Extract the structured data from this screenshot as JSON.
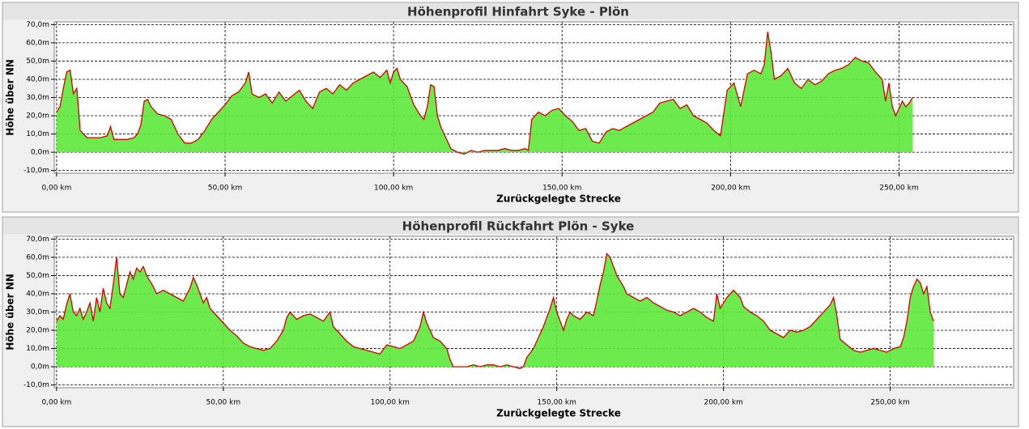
{
  "chart_data": [
    {
      "type": "area",
      "title": "Höhenprofil Hinfahrt Syke - Plön",
      "xlabel": "Zurückgelegte Strecke",
      "ylabel": "Höhe über NN",
      "color": "#5de83a",
      "line_color": "#d40000",
      "grid": true,
      "xlim": [
        -0.7,
        284
      ],
      "ylim": [
        -11.5,
        71.5
      ],
      "xticks": [
        {
          "value": 0,
          "label": "0,00 km"
        },
        {
          "value": 50,
          "label": "50,00 km"
        },
        {
          "value": 100,
          "label": "100,00 km"
        },
        {
          "value": 150,
          "label": "150,00 km"
        },
        {
          "value": 200,
          "label": "200,00 km"
        },
        {
          "value": 250,
          "label": "250,00 km"
        }
      ],
      "yticks": [
        {
          "value": -10,
          "label": "-10,0m"
        },
        {
          "value": 0,
          "label": "0,0m"
        },
        {
          "value": 10,
          "label": "10,0m"
        },
        {
          "value": 20,
          "label": "20,0m"
        },
        {
          "value": 30,
          "label": "30,0m"
        },
        {
          "value": 40,
          "label": "40,0m"
        },
        {
          "value": 50,
          "label": "50,0m"
        },
        {
          "value": 60,
          "label": "60,0m"
        },
        {
          "value": 70,
          "label": "70,0m"
        }
      ],
      "x": [
        0,
        1,
        2,
        3,
        4,
        5,
        6,
        7,
        9,
        11,
        13,
        15,
        16,
        17,
        19,
        21,
        23,
        24,
        25,
        26,
        27,
        28,
        30,
        32,
        34,
        36,
        38,
        40,
        42,
        44,
        46,
        48,
        50,
        52,
        54,
        56,
        57,
        58,
        60,
        62,
        64,
        66,
        68,
        70,
        72,
        74,
        76,
        78,
        80,
        82,
        84,
        86,
        88,
        90,
        92,
        94,
        96,
        98,
        99,
        100,
        101,
        102,
        104,
        106,
        108,
        109,
        110,
        111,
        112,
        113,
        114,
        115,
        117,
        119,
        121,
        123,
        125,
        127,
        129,
        131,
        133,
        135,
        137,
        139,
        140,
        141,
        143,
        145,
        147,
        149,
        151,
        153,
        155,
        157,
        159,
        161,
        163,
        165,
        167,
        169,
        171,
        173,
        175,
        177,
        179,
        181,
        183,
        185,
        187,
        189,
        191,
        193,
        195,
        197,
        199,
        201,
        203,
        205,
        207,
        209,
        210,
        211,
        212,
        213,
        215,
        217,
        219,
        221,
        223,
        225,
        227,
        229,
        231,
        233,
        235,
        237,
        239,
        241,
        243,
        245,
        246,
        247,
        248,
        249,
        251,
        252,
        253,
        254
      ],
      "values": [
        22,
        25,
        35,
        44,
        45,
        32,
        35,
        12,
        8,
        8,
        8,
        9,
        14,
        7,
        7,
        7,
        8,
        10,
        15,
        28,
        29,
        25,
        21,
        20,
        18,
        10,
        5,
        5,
        7,
        12,
        18,
        22,
        26,
        31,
        33,
        38,
        44,
        32,
        30,
        32,
        27,
        33,
        28,
        31,
        34,
        28,
        24,
        33,
        35,
        32,
        37,
        34,
        38,
        40,
        42,
        44,
        41,
        45,
        38,
        44,
        46,
        40,
        36,
        26,
        20,
        18,
        25,
        37,
        36,
        20,
        14,
        10,
        2,
        0,
        -1,
        1,
        0,
        1,
        1,
        1,
        2,
        1,
        1,
        2,
        1,
        18,
        22,
        20,
        23,
        24,
        20,
        17,
        12,
        13,
        6,
        5,
        11,
        13,
        12,
        14,
        16,
        18,
        20,
        22,
        27,
        28,
        29,
        24,
        26,
        20,
        18,
        16,
        12,
        9,
        34,
        38,
        25,
        43,
        45,
        43,
        48,
        66,
        55,
        40,
        42,
        46,
        38,
        35,
        40,
        37,
        39,
        43,
        45,
        46,
        48,
        52,
        50,
        49,
        44,
        40,
        28,
        38,
        25,
        20,
        28,
        25,
        27,
        30
      ]
    },
    {
      "type": "area",
      "title": "Höhenprofil Rückfahrt  Plön - Syke",
      "xlabel": "Zurückgelegte Strecke",
      "ylabel": "Höhe über NN",
      "color": "#5de83a",
      "line_color": "#d40000",
      "grid": true,
      "xlim": [
        -0.7,
        287
      ],
      "ylim": [
        -11.5,
        71.5
      ],
      "xticks": [
        {
          "value": 0,
          "label": "0,00 km"
        },
        {
          "value": 50,
          "label": "50,00 km"
        },
        {
          "value": 100,
          "label": "100,00 km"
        },
        {
          "value": 150,
          "label": "150,00 km"
        },
        {
          "value": 200,
          "label": "200,00 km"
        },
        {
          "value": 250,
          "label": "250,00 km"
        }
      ],
      "yticks": [
        {
          "value": -10,
          "label": "-10,0m"
        },
        {
          "value": 0,
          "label": "0,0m"
        },
        {
          "value": 10,
          "label": "10,0m"
        },
        {
          "value": 20,
          "label": "20,0m"
        },
        {
          "value": 30,
          "label": "30,0m"
        },
        {
          "value": 40,
          "label": "40,0m"
        },
        {
          "value": 50,
          "label": "50,0m"
        },
        {
          "value": 60,
          "label": "60,0m"
        },
        {
          "value": 70,
          "label": "70,0m"
        }
      ],
      "x": [
        0,
        1,
        2,
        3,
        4,
        5,
        6,
        7,
        8,
        9,
        10,
        11,
        12,
        13,
        14,
        15,
        16,
        17,
        18,
        19,
        20,
        21,
        22,
        23,
        24,
        25,
        26,
        27,
        28,
        29,
        30,
        32,
        34,
        36,
        38,
        40,
        41,
        42,
        43,
        44,
        45,
        46,
        48,
        50,
        52,
        54,
        56,
        58,
        60,
        62,
        64,
        66,
        68,
        69,
        70,
        72,
        74,
        76,
        78,
        80,
        82,
        83,
        85,
        87,
        89,
        91,
        93,
        95,
        97,
        99,
        101,
        103,
        105,
        107,
        109,
        110,
        111,
        113,
        115,
        117,
        118,
        119,
        121,
        123,
        125,
        127,
        129,
        131,
        133,
        135,
        137,
        139,
        140,
        141,
        143,
        145,
        146,
        148,
        149,
        150,
        152,
        153,
        154,
        155,
        157,
        159,
        161,
        162,
        163,
        164,
        165,
        166,
        167,
        168,
        170,
        171,
        173,
        175,
        177,
        179,
        181,
        183,
        185,
        187,
        189,
        191,
        193,
        195,
        197,
        198,
        199,
        201,
        203,
        205,
        206,
        208,
        210,
        212,
        214,
        216,
        218,
        220,
        222,
        224,
        226,
        228,
        230,
        232,
        233,
        234,
        235,
        237,
        239,
        241,
        243,
        245,
        247,
        249,
        251,
        253,
        254,
        255,
        256,
        257,
        258,
        259,
        260,
        261,
        262,
        263
      ],
      "values": [
        25,
        28,
        26,
        34,
        40,
        30,
        28,
        32,
        26,
        30,
        35,
        25,
        38,
        30,
        43,
        35,
        32,
        45,
        60,
        40,
        38,
        45,
        52,
        48,
        54,
        52,
        55,
        50,
        47,
        44,
        40,
        42,
        40,
        38,
        36,
        43,
        49,
        45,
        40,
        35,
        38,
        32,
        28,
        24,
        20,
        17,
        13,
        11,
        10,
        9,
        10,
        14,
        20,
        27,
        30,
        26,
        28,
        29,
        27,
        25,
        30,
        22,
        18,
        14,
        11,
        10,
        9,
        8,
        7,
        12,
        11,
        10,
        12,
        14,
        22,
        30,
        24,
        16,
        14,
        10,
        4,
        0,
        0,
        0,
        1,
        0,
        1,
        1,
        0,
        1,
        0,
        -1,
        0,
        5,
        10,
        18,
        22,
        32,
        38,
        30,
        20,
        26,
        30,
        28,
        26,
        30,
        28,
        36,
        45,
        52,
        62,
        60,
        55,
        50,
        44,
        40,
        38,
        36,
        38,
        35,
        33,
        31,
        30,
        28,
        30,
        32,
        30,
        27,
        25,
        40,
        32,
        38,
        42,
        38,
        33,
        30,
        28,
        25,
        20,
        18,
        16,
        20,
        19,
        20,
        22,
        26,
        30,
        34,
        38,
        28,
        15,
        12,
        9,
        8,
        9,
        10,
        9,
        8,
        10,
        11,
        16,
        25,
        38,
        44,
        48,
        46,
        40,
        44,
        30,
        25
      ]
    }
  ]
}
